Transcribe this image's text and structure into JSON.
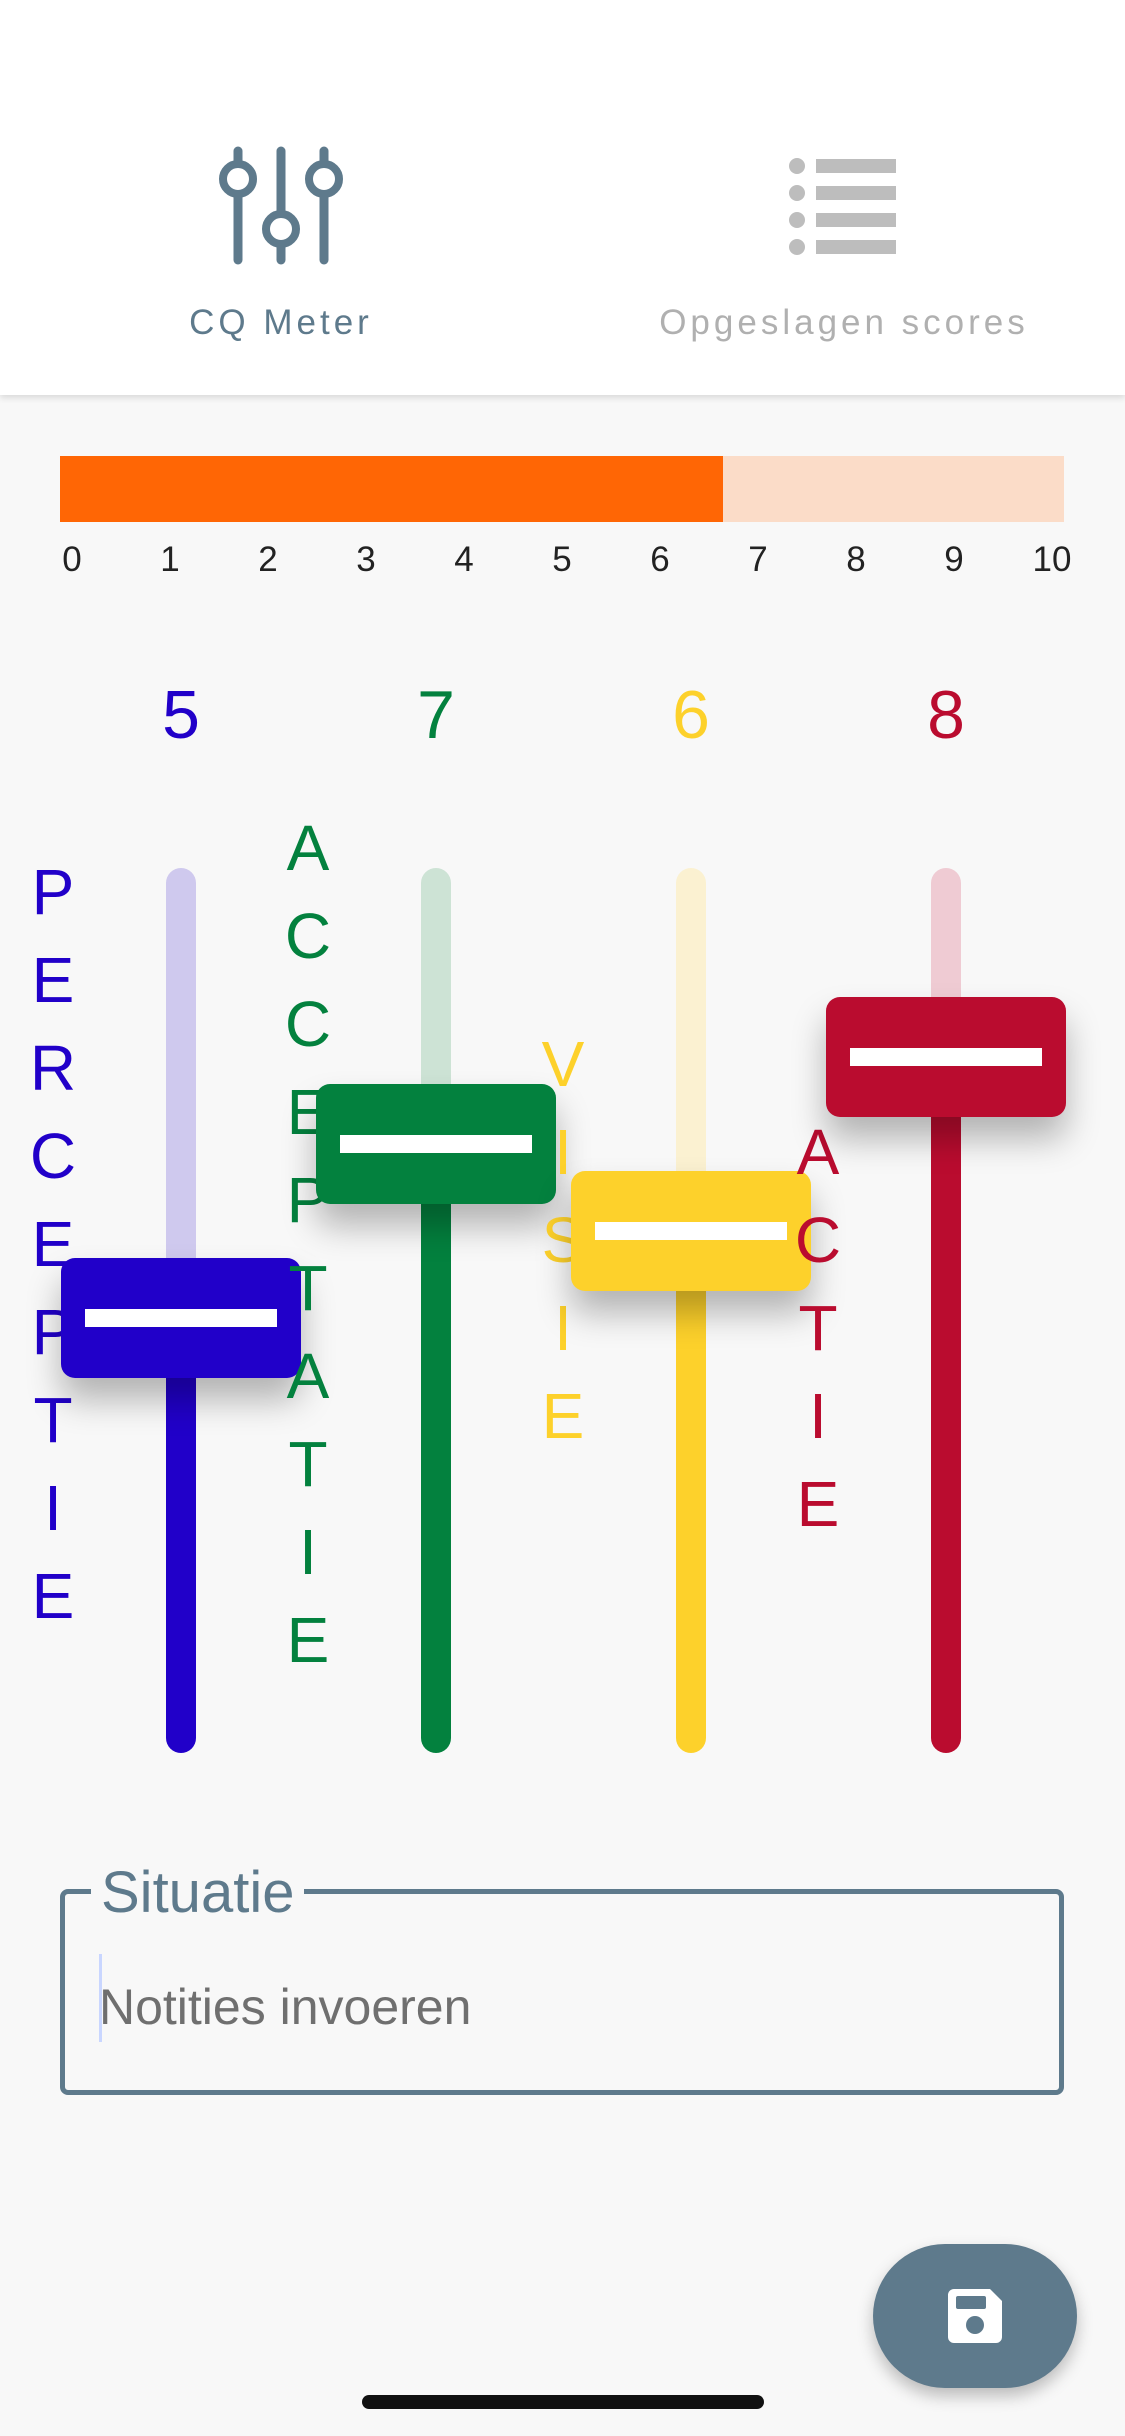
{
  "tabs": [
    {
      "label": "CQ Meter",
      "icon": "sliders-icon",
      "active": true
    },
    {
      "label": "Opgeslagen scores",
      "icon": "list-icon",
      "active": false
    }
  ],
  "score_bar": {
    "value": 6.6,
    "max": 10,
    "ticks": [
      "0",
      "1",
      "2",
      "3",
      "4",
      "5",
      "6",
      "7",
      "8",
      "9",
      "10"
    ],
    "fill_color": "#ff6605",
    "track_color": "#fbdcc8"
  },
  "sliders": [
    {
      "label": "PERCEPTIE",
      "value": "5",
      "level": 5,
      "color": "#2100c9",
      "light_color": "#cfc9ee"
    },
    {
      "label": "ACCEPTATIE",
      "value": "7",
      "level": 7,
      "color": "#03813e",
      "light_color": "#cde3d5"
    },
    {
      "label": "VISIE",
      "value": "6",
      "level": 6,
      "color": "#fdd12b",
      "light_color": "#fbf1d1"
    },
    {
      "label": "ACTIE",
      "value": "8",
      "level": 8,
      "color": "#ba0c2f",
      "light_color": "#efcbd3"
    }
  ],
  "situatie": {
    "legend": "Situatie",
    "placeholder": "Notities invoeren",
    "value": ""
  },
  "save_button": {
    "icon": "save-icon"
  },
  "colors": {
    "accent": "#5e7a8c"
  }
}
